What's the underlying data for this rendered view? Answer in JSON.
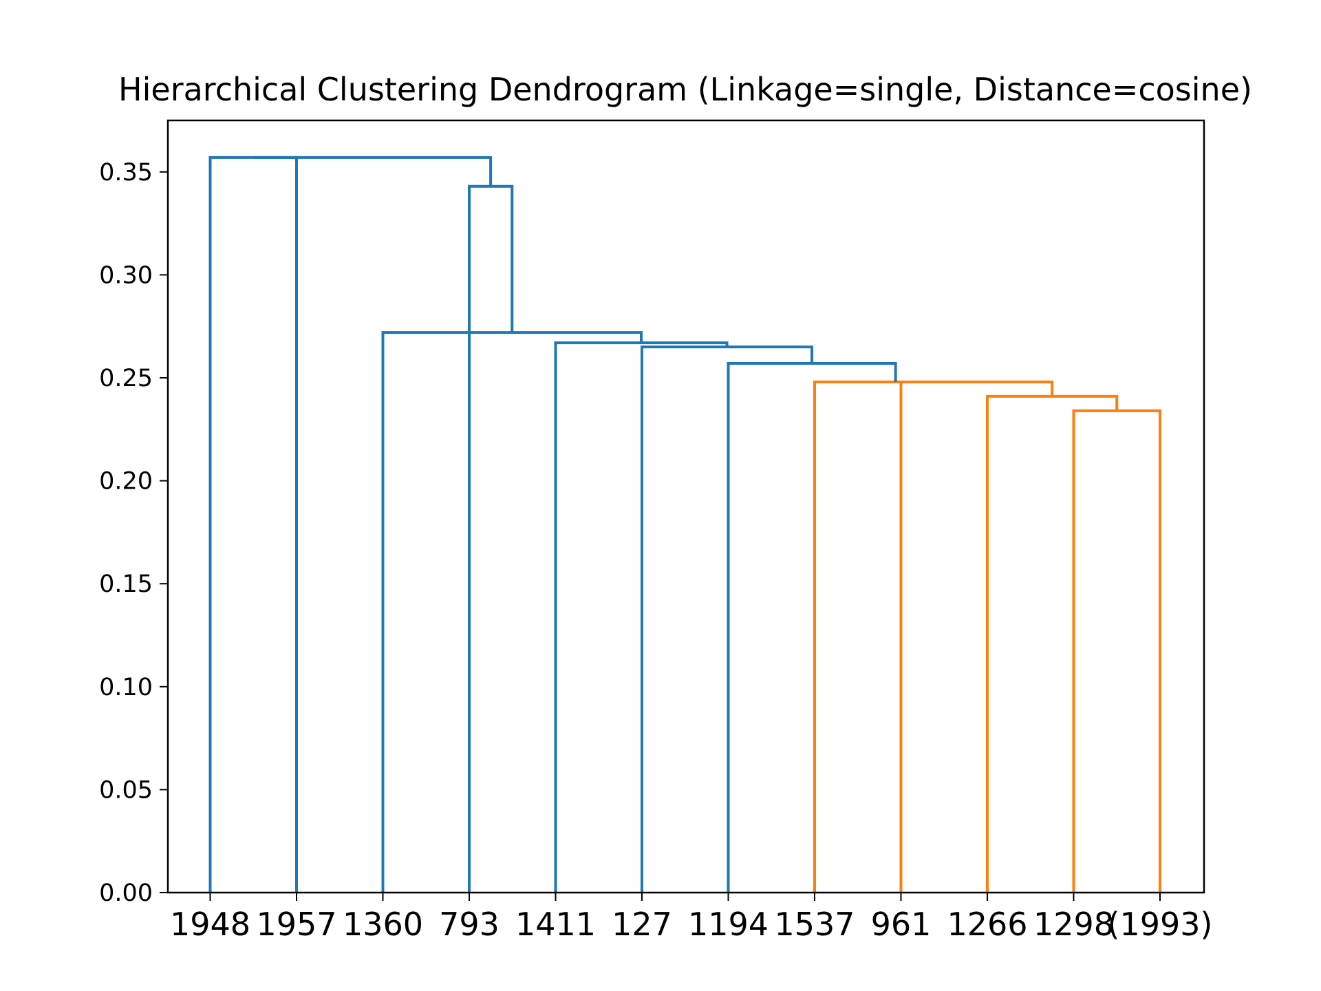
{
  "chart_data": {
    "type": "dendrogram",
    "title": "Hierarchical Clustering Dendrogram (Linkage=single, Distance=cosine)",
    "xlabel": "",
    "ylabel": "",
    "ylim": [
      0,
      0.375
    ],
    "yticks": [
      "0.00",
      "0.05",
      "0.10",
      "0.15",
      "0.20",
      "0.25",
      "0.30",
      "0.35"
    ],
    "leaves": [
      "1948",
      "1957",
      "1360",
      "793",
      "1411",
      "127",
      "1194",
      "1537",
      "961",
      "1266",
      "1298",
      "(1993)"
    ],
    "colors": {
      "above_threshold": "#1f77b4",
      "cluster_1": "#ff7f0e",
      "axes": "#000000"
    },
    "links": [
      {
        "left": 10,
        "right": 11,
        "height": 0.234,
        "color": "cluster_1"
      },
      {
        "left": 9,
        "right": "link_0",
        "height": 0.241,
        "color": "cluster_1"
      },
      {
        "left": 8,
        "right": "link_1",
        "height": 0.248,
        "color": "cluster_1"
      },
      {
        "left": 7,
        "right": "link_2",
        "height": 0.248,
        "color": "cluster_1"
      },
      {
        "left": 6,
        "right": "link_3",
        "height": 0.257,
        "color": "above_threshold"
      },
      {
        "left": 5,
        "right": "link_4",
        "height": 0.265,
        "color": "above_threshold"
      },
      {
        "left": 4,
        "right": "link_5",
        "height": 0.267,
        "color": "above_threshold"
      },
      {
        "left": 2,
        "right": "link_6",
        "height": 0.272,
        "color": "above_threshold"
      },
      {
        "left": 3,
        "right": "link_7",
        "height": 0.343,
        "color": "above_threshold"
      },
      {
        "left": 0,
        "right": 1,
        "height": 0.357,
        "color": "above_threshold"
      },
      {
        "left": "link_9",
        "right": "link_8",
        "height": 0.357,
        "color": "above_threshold"
      }
    ]
  }
}
